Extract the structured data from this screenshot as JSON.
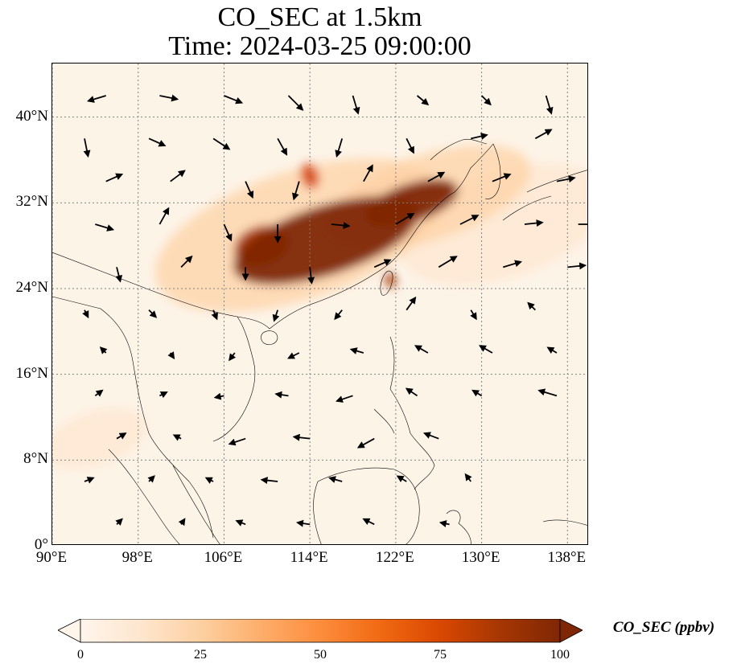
{
  "title": {
    "line1": "CO_SEC at 1.5km",
    "line2": "Time: 2024-03-25 09:00:00"
  },
  "map": {
    "lon_range": [
      90,
      140
    ],
    "lat_range": [
      0,
      45
    ],
    "graticule_color": "#808080",
    "background_color": "#fdf4e8",
    "coastline_color": "#000000",
    "gridlines": "dotted",
    "x_ticks": [
      {
        "lon": 90,
        "label": "90°E"
      },
      {
        "lon": 98,
        "label": "98°E"
      },
      {
        "lon": 106,
        "label": "106°E"
      },
      {
        "lon": 114,
        "label": "114°E"
      },
      {
        "lon": 122,
        "label": "122°E"
      },
      {
        "lon": 130,
        "label": "130°E"
      },
      {
        "lon": 138,
        "label": "138°E"
      }
    ],
    "y_ticks": [
      {
        "lat": 0,
        "label": "0°"
      },
      {
        "lat": 8,
        "label": "8°N"
      },
      {
        "lat": 16,
        "label": "16°N"
      },
      {
        "lat": 24,
        "label": "24°N"
      },
      {
        "lat": 32,
        "label": "32°N"
      },
      {
        "lat": 40,
        "label": "40°N"
      }
    ],
    "plumes": [
      {
        "lon": 115.5,
        "lat": 28.5,
        "rlon": 9,
        "rlat": 3.2,
        "level": 100
      },
      {
        "lon": 123.5,
        "lat": 32.0,
        "rlon": 4.5,
        "rlat": 1.8,
        "level": 100
      },
      {
        "lon": 109.5,
        "lat": 28.0,
        "rlon": 2.6,
        "rlat": 1.8,
        "level": 90
      },
      {
        "lon": 114.0,
        "lat": 34.5,
        "rlon": 0.8,
        "rlat": 1.2,
        "level": 80
      },
      {
        "lon": 121.5,
        "lat": 24.8,
        "rlon": 0.5,
        "rlat": 0.7,
        "level": 85
      },
      {
        "lon": 113.0,
        "lat": 29.0,
        "rlon": 14,
        "rlat": 6,
        "level": 30
      },
      {
        "lon": 125.0,
        "lat": 32.5,
        "rlon": 10,
        "rlat": 4,
        "level": 20
      },
      {
        "lon": 94.0,
        "lat": 10.0,
        "rlon": 5,
        "rlat": 2.5,
        "level": 10
      },
      {
        "lon": 132.0,
        "lat": 30.0,
        "rlon": 10,
        "rlat": 5,
        "level": 8
      }
    ],
    "wind_vectors": [
      {
        "lon": 95,
        "lat": 42,
        "u": -1.0,
        "v": -0.3
      },
      {
        "lon": 100,
        "lat": 42,
        "u": 1.0,
        "v": -0.2
      },
      {
        "lon": 106,
        "lat": 42,
        "u": 1.0,
        "v": -0.4
      },
      {
        "lon": 112,
        "lat": 42,
        "u": 0.8,
        "v": -0.8
      },
      {
        "lon": 118,
        "lat": 42,
        "u": 0.3,
        "v": -1.0
      },
      {
        "lon": 124,
        "lat": 42,
        "u": 0.6,
        "v": -0.5
      },
      {
        "lon": 130,
        "lat": 42,
        "u": 0.5,
        "v": -0.5
      },
      {
        "lon": 136,
        "lat": 42,
        "u": 0.3,
        "v": -1.0
      },
      {
        "lon": 93,
        "lat": 38,
        "u": 0.2,
        "v": -1.0
      },
      {
        "lon": 99,
        "lat": 38,
        "u": 0.9,
        "v": -0.4
      },
      {
        "lon": 105,
        "lat": 38,
        "u": 0.9,
        "v": -0.6
      },
      {
        "lon": 111,
        "lat": 38,
        "u": 0.5,
        "v": -0.9
      },
      {
        "lon": 117,
        "lat": 38,
        "u": -0.3,
        "v": -1.0
      },
      {
        "lon": 123,
        "lat": 38,
        "u": 0.4,
        "v": -0.8
      },
      {
        "lon": 129,
        "lat": 38,
        "u": 0.9,
        "v": 0.2
      },
      {
        "lon": 135,
        "lat": 38,
        "u": 0.9,
        "v": 0.5
      },
      {
        "lon": 95,
        "lat": 34,
        "u": 0.9,
        "v": 0.4
      },
      {
        "lon": 101,
        "lat": 34,
        "u": 0.8,
        "v": 0.6
      },
      {
        "lon": 108,
        "lat": 34,
        "u": 0.4,
        "v": -0.9
      },
      {
        "lon": 113,
        "lat": 34,
        "u": -0.3,
        "v": -1.0
      },
      {
        "lon": 119,
        "lat": 34,
        "u": 0.5,
        "v": 0.9
      },
      {
        "lon": 125,
        "lat": 34,
        "u": 0.9,
        "v": 0.5
      },
      {
        "lon": 131,
        "lat": 34,
        "u": 1.0,
        "v": 0.4
      },
      {
        "lon": 137,
        "lat": 34,
        "u": 1.0,
        "v": 0.2
      },
      {
        "lon": 94,
        "lat": 30,
        "u": 1.0,
        "v": -0.3
      },
      {
        "lon": 100,
        "lat": 30,
        "u": 0.5,
        "v": 0.9
      },
      {
        "lon": 106,
        "lat": 30,
        "u": 0.4,
        "v": -0.9
      },
      {
        "lon": 111,
        "lat": 30,
        "u": 0.0,
        "v": -1.0
      },
      {
        "lon": 116,
        "lat": 30,
        "u": 1.0,
        "v": -0.1
      },
      {
        "lon": 122,
        "lat": 30,
        "u": 1.0,
        "v": 0.6
      },
      {
        "lon": 128,
        "lat": 30,
        "u": 1.0,
        "v": 0.5
      },
      {
        "lon": 134,
        "lat": 30,
        "u": 1.0,
        "v": 0.1
      },
      {
        "lon": 139,
        "lat": 30,
        "u": 1.0,
        "v": 0.0
      },
      {
        "lon": 96,
        "lat": 26,
        "u": 0.2,
        "v": -0.8
      },
      {
        "lon": 102,
        "lat": 26,
        "u": 0.6,
        "v": 0.6
      },
      {
        "lon": 108,
        "lat": 26,
        "u": 0.0,
        "v": -0.7
      },
      {
        "lon": 114,
        "lat": 26,
        "u": 0.1,
        "v": -0.9
      },
      {
        "lon": 120,
        "lat": 26,
        "u": 0.9,
        "v": 0.4
      },
      {
        "lon": 126,
        "lat": 26,
        "u": 1.0,
        "v": 0.6
      },
      {
        "lon": 132,
        "lat": 26,
        "u": 1.0,
        "v": 0.3
      },
      {
        "lon": 138,
        "lat": 26,
        "u": 1.0,
        "v": 0.1
      },
      {
        "lon": 93,
        "lat": 22,
        "u": 0.2,
        "v": -0.4
      },
      {
        "lon": 99,
        "lat": 22,
        "u": 0.4,
        "v": -0.4
      },
      {
        "lon": 105,
        "lat": 22,
        "u": 0.2,
        "v": -0.5
      },
      {
        "lon": 111,
        "lat": 22,
        "u": -0.2,
        "v": -0.6
      },
      {
        "lon": 117,
        "lat": 22,
        "u": -0.4,
        "v": -0.5
      },
      {
        "lon": 123,
        "lat": 22,
        "u": 0.5,
        "v": 0.7
      },
      {
        "lon": 129,
        "lat": 22,
        "u": 0.3,
        "v": -0.5
      },
      {
        "lon": 135,
        "lat": 22,
        "u": -0.4,
        "v": 0.4
      },
      {
        "lon": 95,
        "lat": 18,
        "u": -0.3,
        "v": 0.3
      },
      {
        "lon": 101,
        "lat": 18,
        "u": 0.2,
        "v": -0.3
      },
      {
        "lon": 107,
        "lat": 18,
        "u": -0.3,
        "v": -0.4
      },
      {
        "lon": 113,
        "lat": 18,
        "u": -0.6,
        "v": -0.3
      },
      {
        "lon": 119,
        "lat": 18,
        "u": -0.7,
        "v": 0.2
      },
      {
        "lon": 125,
        "lat": 18,
        "u": -0.7,
        "v": 0.4
      },
      {
        "lon": 131,
        "lat": 18,
        "u": -0.7,
        "v": 0.4
      },
      {
        "lon": 137,
        "lat": 18,
        "u": -0.5,
        "v": 0.3
      },
      {
        "lon": 94,
        "lat": 14,
        "u": 0.4,
        "v": 0.3
      },
      {
        "lon": 100,
        "lat": 14,
        "u": 0.4,
        "v": 0.2
      },
      {
        "lon": 106,
        "lat": 14,
        "u": -0.5,
        "v": -0.1
      },
      {
        "lon": 112,
        "lat": 14,
        "u": -0.7,
        "v": 0.1
      },
      {
        "lon": 118,
        "lat": 14,
        "u": -0.9,
        "v": -0.3
      },
      {
        "lon": 124,
        "lat": 14,
        "u": -0.6,
        "v": 0.4
      },
      {
        "lon": 130,
        "lat": 14,
        "u": -0.5,
        "v": 0.3
      },
      {
        "lon": 137,
        "lat": 14,
        "u": -1.0,
        "v": 0.3
      },
      {
        "lon": 96,
        "lat": 10,
        "u": 0.5,
        "v": 0.3
      },
      {
        "lon": 102,
        "lat": 10,
        "u": -0.4,
        "v": 0.2
      },
      {
        "lon": 108,
        "lat": 10,
        "u": -0.9,
        "v": -0.3
      },
      {
        "lon": 114,
        "lat": 10,
        "u": -0.9,
        "v": 0.1
      },
      {
        "lon": 120,
        "lat": 10,
        "u": -0.9,
        "v": -0.5
      },
      {
        "lon": 126,
        "lat": 10,
        "u": -0.8,
        "v": 0.3
      },
      {
        "lon": 93,
        "lat": 6,
        "u": 0.5,
        "v": 0.2
      },
      {
        "lon": 99,
        "lat": 6,
        "u": 0.3,
        "v": 0.3
      },
      {
        "lon": 105,
        "lat": 6,
        "u": -0.4,
        "v": 0.2
      },
      {
        "lon": 111,
        "lat": 6,
        "u": -0.9,
        "v": 0.1
      },
      {
        "lon": 117,
        "lat": 6,
        "u": -0.7,
        "v": 0.2
      },
      {
        "lon": 123,
        "lat": 6,
        "u": -0.5,
        "v": 0.3
      },
      {
        "lon": 129,
        "lat": 6,
        "u": -0.3,
        "v": 0.4
      },
      {
        "lon": 96,
        "lat": 2,
        "u": 0.3,
        "v": 0.3
      },
      {
        "lon": 102,
        "lat": 2,
        "u": 0.2,
        "v": 0.3
      },
      {
        "lon": 108,
        "lat": 2,
        "u": -0.5,
        "v": 0.2
      },
      {
        "lon": 114,
        "lat": 2,
        "u": -0.7,
        "v": 0.1
      },
      {
        "lon": 120,
        "lat": 2,
        "u": -0.6,
        "v": 0.3
      },
      {
        "lon": 127,
        "lat": 2,
        "u": -0.5,
        "v": 0.1
      }
    ]
  },
  "colorbar": {
    "label": "CO_SEC (ppbv)",
    "min": 0,
    "max": 100,
    "extend": "both",
    "ticks": [
      {
        "value": 0,
        "label": "0"
      },
      {
        "value": 25,
        "label": "25"
      },
      {
        "value": 50,
        "label": "50"
      },
      {
        "value": 75,
        "label": "75"
      },
      {
        "value": 100,
        "label": "100"
      }
    ],
    "colors": [
      "#fff5eb",
      "#fee6ce",
      "#fdd0a2",
      "#fdae6b",
      "#fd8d3c",
      "#f16913",
      "#d94801",
      "#a63603",
      "#7f2704"
    ]
  }
}
